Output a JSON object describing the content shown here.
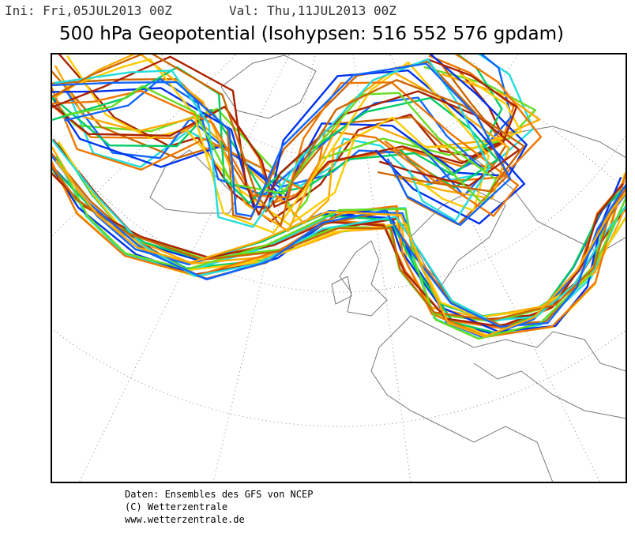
{
  "header": {
    "init": "Ini: Fri,05JUL2013 00Z",
    "valid": "Val: Thu,11JUL2013 00Z",
    "title": "500 hPa Geopotential (Isohypsen: 516 552 576 gpdam)"
  },
  "footer": {
    "lines": [
      "Daten: Ensembles des GFS von NCEP",
      "(C) Wetterzentrale",
      "www.wetterzentrale.de"
    ]
  }
}
